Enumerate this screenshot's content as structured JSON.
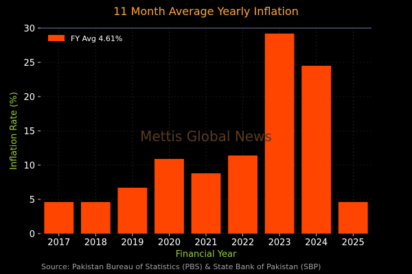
{
  "colors": {
    "background": "#000000",
    "bar": "#ff4500",
    "title": "#ffa533",
    "axis_label": "#9acd32",
    "watermark": "#5a3a1e",
    "source": "#a0a0a0",
    "top_line": "#6f79a8"
  },
  "watermark": "Mettis Global News",
  "source": "Source: Pakistan Bureau of Statistics (PBS) & State Bank of Pakistan (SBP)",
  "chart_data": {
    "type": "bar",
    "title": "11 Month Average Yearly Inflation",
    "xlabel": "Financial Year",
    "ylabel": "Inflation Rate (%)",
    "categories": [
      "2017",
      "2018",
      "2019",
      "2020",
      "2021",
      "2022",
      "2023",
      "2024",
      "2025"
    ],
    "series": [
      {
        "name": "FY Avg 4.61%",
        "values": [
          4.6,
          4.6,
          6.7,
          10.9,
          8.8,
          11.4,
          29.2,
          24.5,
          4.61
        ]
      }
    ],
    "ylim": [
      0,
      30
    ],
    "yticks": [
      0,
      5,
      10,
      15,
      20,
      25,
      30
    ],
    "grid": true,
    "legend_position": "top-left"
  }
}
